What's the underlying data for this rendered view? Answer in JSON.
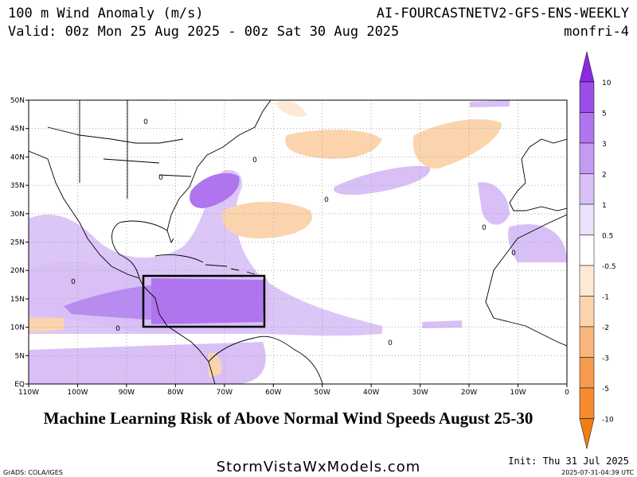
{
  "header": {
    "title": "100 m Wind Anomaly (m/s)",
    "model": "AI-FOURCASTNETV2-GFS-ENS-WEEKLY",
    "valid": "Valid: 00z Mon 25 Aug 2025 - 00z Sat 30 Aug 2025",
    "run": "monfri-4"
  },
  "map": {
    "x_labels": [
      "110W",
      "100W",
      "90W",
      "80W",
      "70W",
      "60W",
      "50W",
      "40W",
      "30W",
      "20W",
      "10W",
      "0"
    ],
    "y_labels": [
      "EQ",
      "5N",
      "10N",
      "15N",
      "20N",
      "25N",
      "30N",
      "35N",
      "40N",
      "45N",
      "50N"
    ],
    "contour_labels": [
      "0",
      "0",
      "0",
      "0",
      "0",
      "0",
      "0",
      "0",
      "0"
    ]
  },
  "colorbar": {
    "labels": [
      "10",
      "5",
      "3",
      "2",
      "1",
      "0.5",
      "-0.5",
      "-1",
      "-2",
      "-3",
      "-5",
      "-10"
    ],
    "colors": [
      "#8a2be2",
      "#9b4de8",
      "#af74ee",
      "#c39cf2",
      "#d8c0f6",
      "#ece1fb",
      "#ffffff",
      "#fde9d6",
      "#fbd4ae",
      "#f8b67c",
      "#f69b4e",
      "#f58a2e",
      "#f07e14"
    ]
  },
  "caption": "Machine Learning Risk of Above Normal Wind Speeds August 25-30",
  "footer": {
    "software": "GrADS: COLA/IGES",
    "site": "StormVistaWxModels.com",
    "init": "Init: Thu 31 Jul 2025",
    "stamp": "2025-07-31-04:39 UTC"
  }
}
